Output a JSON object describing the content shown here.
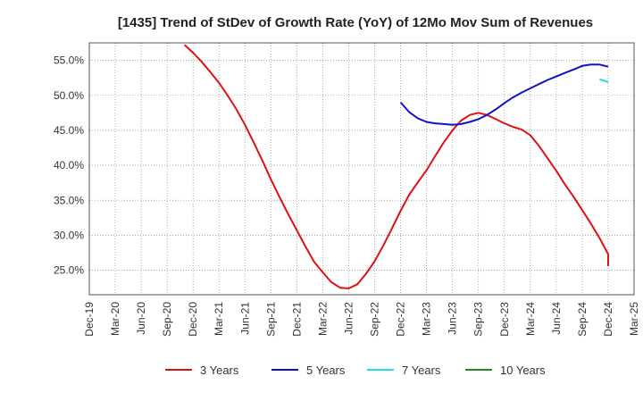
{
  "chart_data": {
    "type": "line",
    "title": "[1435]  Trend of StDev of Growth Rate (YoY) of 12Mo Mov Sum of Revenues",
    "xlabel": "",
    "ylabel": "",
    "categories": [
      "Dec-19",
      "Mar-20",
      "Jun-20",
      "Sep-20",
      "Dec-20",
      "Mar-21",
      "Jun-21",
      "Sep-21",
      "Dec-21",
      "Mar-22",
      "Jun-22",
      "Sep-22",
      "Dec-22",
      "Mar-23",
      "Jun-23",
      "Sep-23",
      "Dec-23",
      "Mar-24",
      "Jun-24",
      "Sep-24",
      "Dec-24",
      "Mar-25"
    ],
    "y_ticks": [
      "25.0%",
      "30.0%",
      "35.0%",
      "40.0%",
      "45.0%",
      "50.0%",
      "55.0%"
    ],
    "ylim": [
      21.5,
      57.5
    ],
    "grid": true,
    "legend_position": "bottom",
    "series": [
      {
        "name": "3 Years",
        "color": "#dd1111",
        "x": [
          3.67,
          4.0,
          4.33,
          4.67,
          5.0,
          5.33,
          5.67,
          6.0,
          6.33,
          6.67,
          7.0,
          7.33,
          7.67,
          8.0,
          8.33,
          8.67,
          9.0,
          9.33,
          9.67,
          10.0,
          10.33,
          10.67,
          11.0,
          11.33,
          11.67,
          12.0,
          12.33,
          12.67,
          13.0,
          13.33,
          13.67,
          14.0,
          14.33,
          14.67,
          15.0,
          15.33,
          15.67,
          16.0,
          16.33,
          16.67,
          17.0,
          17.33,
          17.67,
          18.0,
          18.33,
          18.67,
          19.0,
          19.33,
          19.67,
          20.0
        ],
        "values": [
          57.2,
          56.1,
          54.8,
          53.3,
          51.8,
          50.0,
          48.0,
          45.8,
          43.3,
          40.7,
          38.0,
          35.5,
          33.0,
          30.7,
          28.4,
          26.2,
          24.7,
          23.3,
          22.5,
          22.4,
          23.0,
          24.5,
          26.3,
          28.5,
          31.0,
          33.5,
          35.8,
          37.6,
          39.3,
          41.3,
          43.3,
          45.0,
          46.4,
          47.2,
          47.5,
          47.2,
          46.6,
          46.0,
          45.5,
          45.1,
          44.3,
          42.8,
          41.0,
          39.2,
          37.3,
          35.5,
          33.6,
          31.7,
          29.6,
          27.3
        ],
        "values_tail": [
          25.6
        ]
      },
      {
        "name": "5 Years",
        "color": "#1111cc",
        "x": [
          12.0,
          12.33,
          12.67,
          13.0,
          13.33,
          13.67,
          14.0,
          14.33,
          14.67,
          15.0,
          15.33,
          15.67,
          16.0,
          16.33,
          16.67,
          17.0,
          17.33,
          17.67,
          18.0,
          18.33,
          18.67,
          19.0,
          19.33,
          19.67,
          20.0
        ],
        "values": [
          49.0,
          47.6,
          46.7,
          46.2,
          46.0,
          45.9,
          45.8,
          45.9,
          46.2,
          46.6,
          47.2,
          48.0,
          48.9,
          49.7,
          50.4,
          51.0,
          51.6,
          52.2,
          52.7,
          53.2,
          53.7,
          54.2,
          54.4,
          54.4,
          54.1
        ]
      },
      {
        "name": "7 Years",
        "color": "#22dddd",
        "x": [
          19.67,
          20.0
        ],
        "values": [
          52.3,
          51.9
        ]
      },
      {
        "name": "10 Years",
        "color": "#228822",
        "x": [],
        "values": []
      }
    ]
  }
}
